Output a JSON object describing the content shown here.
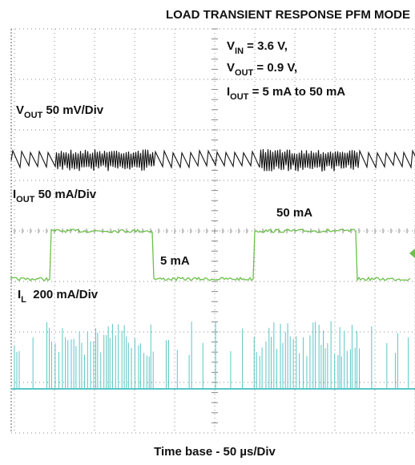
{
  "header": {
    "title": "LOAD TRANSIENT RESPONSE PFM MODE"
  },
  "conditions": [
    {
      "symbol": "V",
      "subscript": "IN",
      "text": " = 3.6 V,"
    },
    {
      "symbol": "V",
      "subscript": "OUT",
      "text": " = 0.9 V,"
    },
    {
      "symbol": "I",
      "subscript": "OUT",
      "text": " = 5 mA to 50 mA"
    }
  ],
  "channels": [
    {
      "symbol": "V",
      "subscript": "OUT",
      "text": " 50 mV/Div"
    },
    {
      "symbol": "I",
      "subscript": "OUT",
      "text": " 50 mA/Div"
    },
    {
      "symbol": "I",
      "subscript": "L",
      "text": "  200 mA/Div"
    }
  ],
  "annotations": [
    "50 mA",
    "5 mA"
  ],
  "footer": {
    "text": "Time base - 50 µs/Div"
  }
}
